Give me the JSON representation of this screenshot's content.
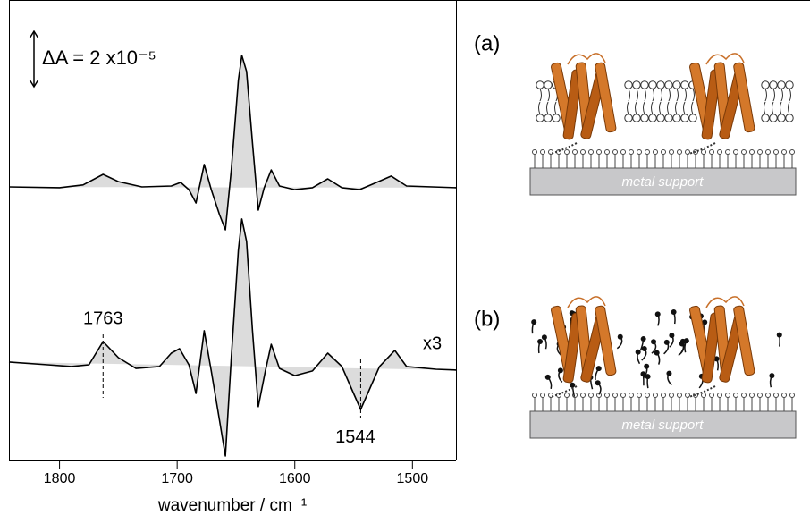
{
  "chart_data": {
    "type": "line",
    "xlabel": "wavenumber / cm⁻¹",
    "xlim": [
      1843,
      1463
    ],
    "xticks": [
      1800,
      1700,
      1600,
      1500
    ],
    "ylim": [
      0,
      16.61
    ],
    "color": "#000000",
    "fill_color": "#dcdcdc",
    "scale_bar": {
      "label": "ΔA = 2 x10⁻⁵",
      "value": 2
    },
    "annotations": [
      {
        "label": "1763",
        "x": 1763
      },
      {
        "label": "1544",
        "x": 1544
      },
      {
        "label": "x3"
      }
    ],
    "series": [
      {
        "x": [
          1843,
          1800,
          1780,
          1763,
          1750,
          1730,
          1705,
          1697,
          1690,
          1684,
          1677,
          1671,
          1664,
          1659,
          1654,
          1648,
          1645,
          1641,
          1636,
          1631,
          1626,
          1620,
          1613,
          1600,
          1585,
          1572,
          1560,
          1545,
          1532,
          1518,
          1505,
          1463
        ],
        "values": [
          9.87,
          9.84,
          9.94,
          10.32,
          10.06,
          9.87,
          9.9,
          10.03,
          9.77,
          9.29,
          10.68,
          9.77,
          8.87,
          8.32,
          10.48,
          13.71,
          14.61,
          14.03,
          11.45,
          9.03,
          9.84,
          10.48,
          9.9,
          9.77,
          9.84,
          10.16,
          9.84,
          9.77,
          10.0,
          10.26,
          9.9,
          9.84
        ]
      },
      {
        "x": [
          1843,
          1810,
          1790,
          1775,
          1763,
          1750,
          1735,
          1715,
          1705,
          1698,
          1690,
          1684,
          1677,
          1671,
          1664,
          1659,
          1654,
          1648,
          1645,
          1641,
          1636,
          1631,
          1625,
          1620,
          1613,
          1600,
          1585,
          1572,
          1560,
          1550,
          1544,
          1538,
          1528,
          1515,
          1505,
          1480,
          1463
        ],
        "values": [
          3.55,
          3.45,
          3.39,
          3.45,
          4.29,
          3.71,
          3.32,
          3.39,
          3.87,
          4.03,
          3.45,
          2.42,
          4.68,
          3.23,
          1.45,
          0.16,
          3.71,
          7.58,
          8.71,
          7.9,
          4.68,
          1.94,
          3.23,
          4.19,
          3.32,
          3.06,
          3.23,
          3.87,
          3.39,
          2.42,
          1.84,
          2.42,
          3.39,
          3.97,
          3.39,
          3.29,
          3.26
        ]
      }
    ]
  },
  "diagram": {
    "panels": [
      {
        "label": "(a)",
        "support": "metal support"
      },
      {
        "label": "(b)",
        "support": "metal support"
      }
    ]
  }
}
